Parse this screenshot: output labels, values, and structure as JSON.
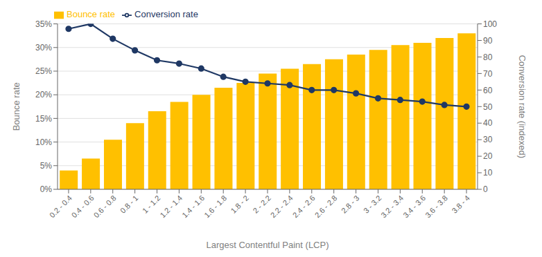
{
  "chart_data": {
    "type": "bar",
    "xlabel": "Largest Contentful Paint (LCP)",
    "ylabel": "Bounce rate",
    "y2label": "Conversion rate (indexed)",
    "categories": [
      "0.2 - 0.4",
      "0.4 - 0.6",
      "0.6 - 0.8",
      "0.8 - 1",
      "1 - 1.2",
      "1.2 - 1.4",
      "1.4 - 1.6",
      "1.6 - 1.8",
      "1.8 - 2",
      "2 - 2.2",
      "2.2 - 2.4",
      "2.4 - 2.6",
      "2.6 - 2.8",
      "2.8 - 3",
      "3 - 3.2",
      "3.2 - 3.4",
      "3.4 - 3.6",
      "3.6 - 3.8",
      "3.8 - 4"
    ],
    "series": [
      {
        "name": "Bounce rate",
        "type": "bar",
        "color": "#FFC000",
        "values": [
          0.04,
          0.065,
          0.105,
          0.14,
          0.165,
          0.185,
          0.2,
          0.215,
          0.225,
          0.245,
          0.255,
          0.265,
          0.275,
          0.285,
          0.295,
          0.305,
          0.31,
          0.32,
          0.33
        ]
      },
      {
        "name": "Conversion rate",
        "type": "line",
        "color": "#1F3864",
        "marker": "circle",
        "axis": "y2",
        "values": [
          97,
          100,
          91,
          84,
          78,
          76,
          73,
          68,
          65,
          64,
          63,
          60,
          60,
          58,
          55,
          54,
          53,
          51,
          50
        ]
      }
    ],
    "ylim": [
      0,
      0.35
    ],
    "yticks": [
      {
        "value": 0,
        "label": "0%"
      },
      {
        "value": 0.05,
        "label": "5%"
      },
      {
        "value": 0.1,
        "label": "10%"
      },
      {
        "value": 0.15,
        "label": "15%"
      },
      {
        "value": 0.2,
        "label": "20%"
      },
      {
        "value": 0.25,
        "label": "25%"
      },
      {
        "value": 0.3,
        "label": "30%"
      },
      {
        "value": 0.35,
        "label": "35%"
      }
    ],
    "y2lim": [
      0,
      100
    ],
    "y2ticks": [
      0,
      10,
      20,
      30,
      40,
      50,
      60,
      70,
      80,
      90,
      100
    ],
    "grid": true,
    "legend": "upper left"
  }
}
